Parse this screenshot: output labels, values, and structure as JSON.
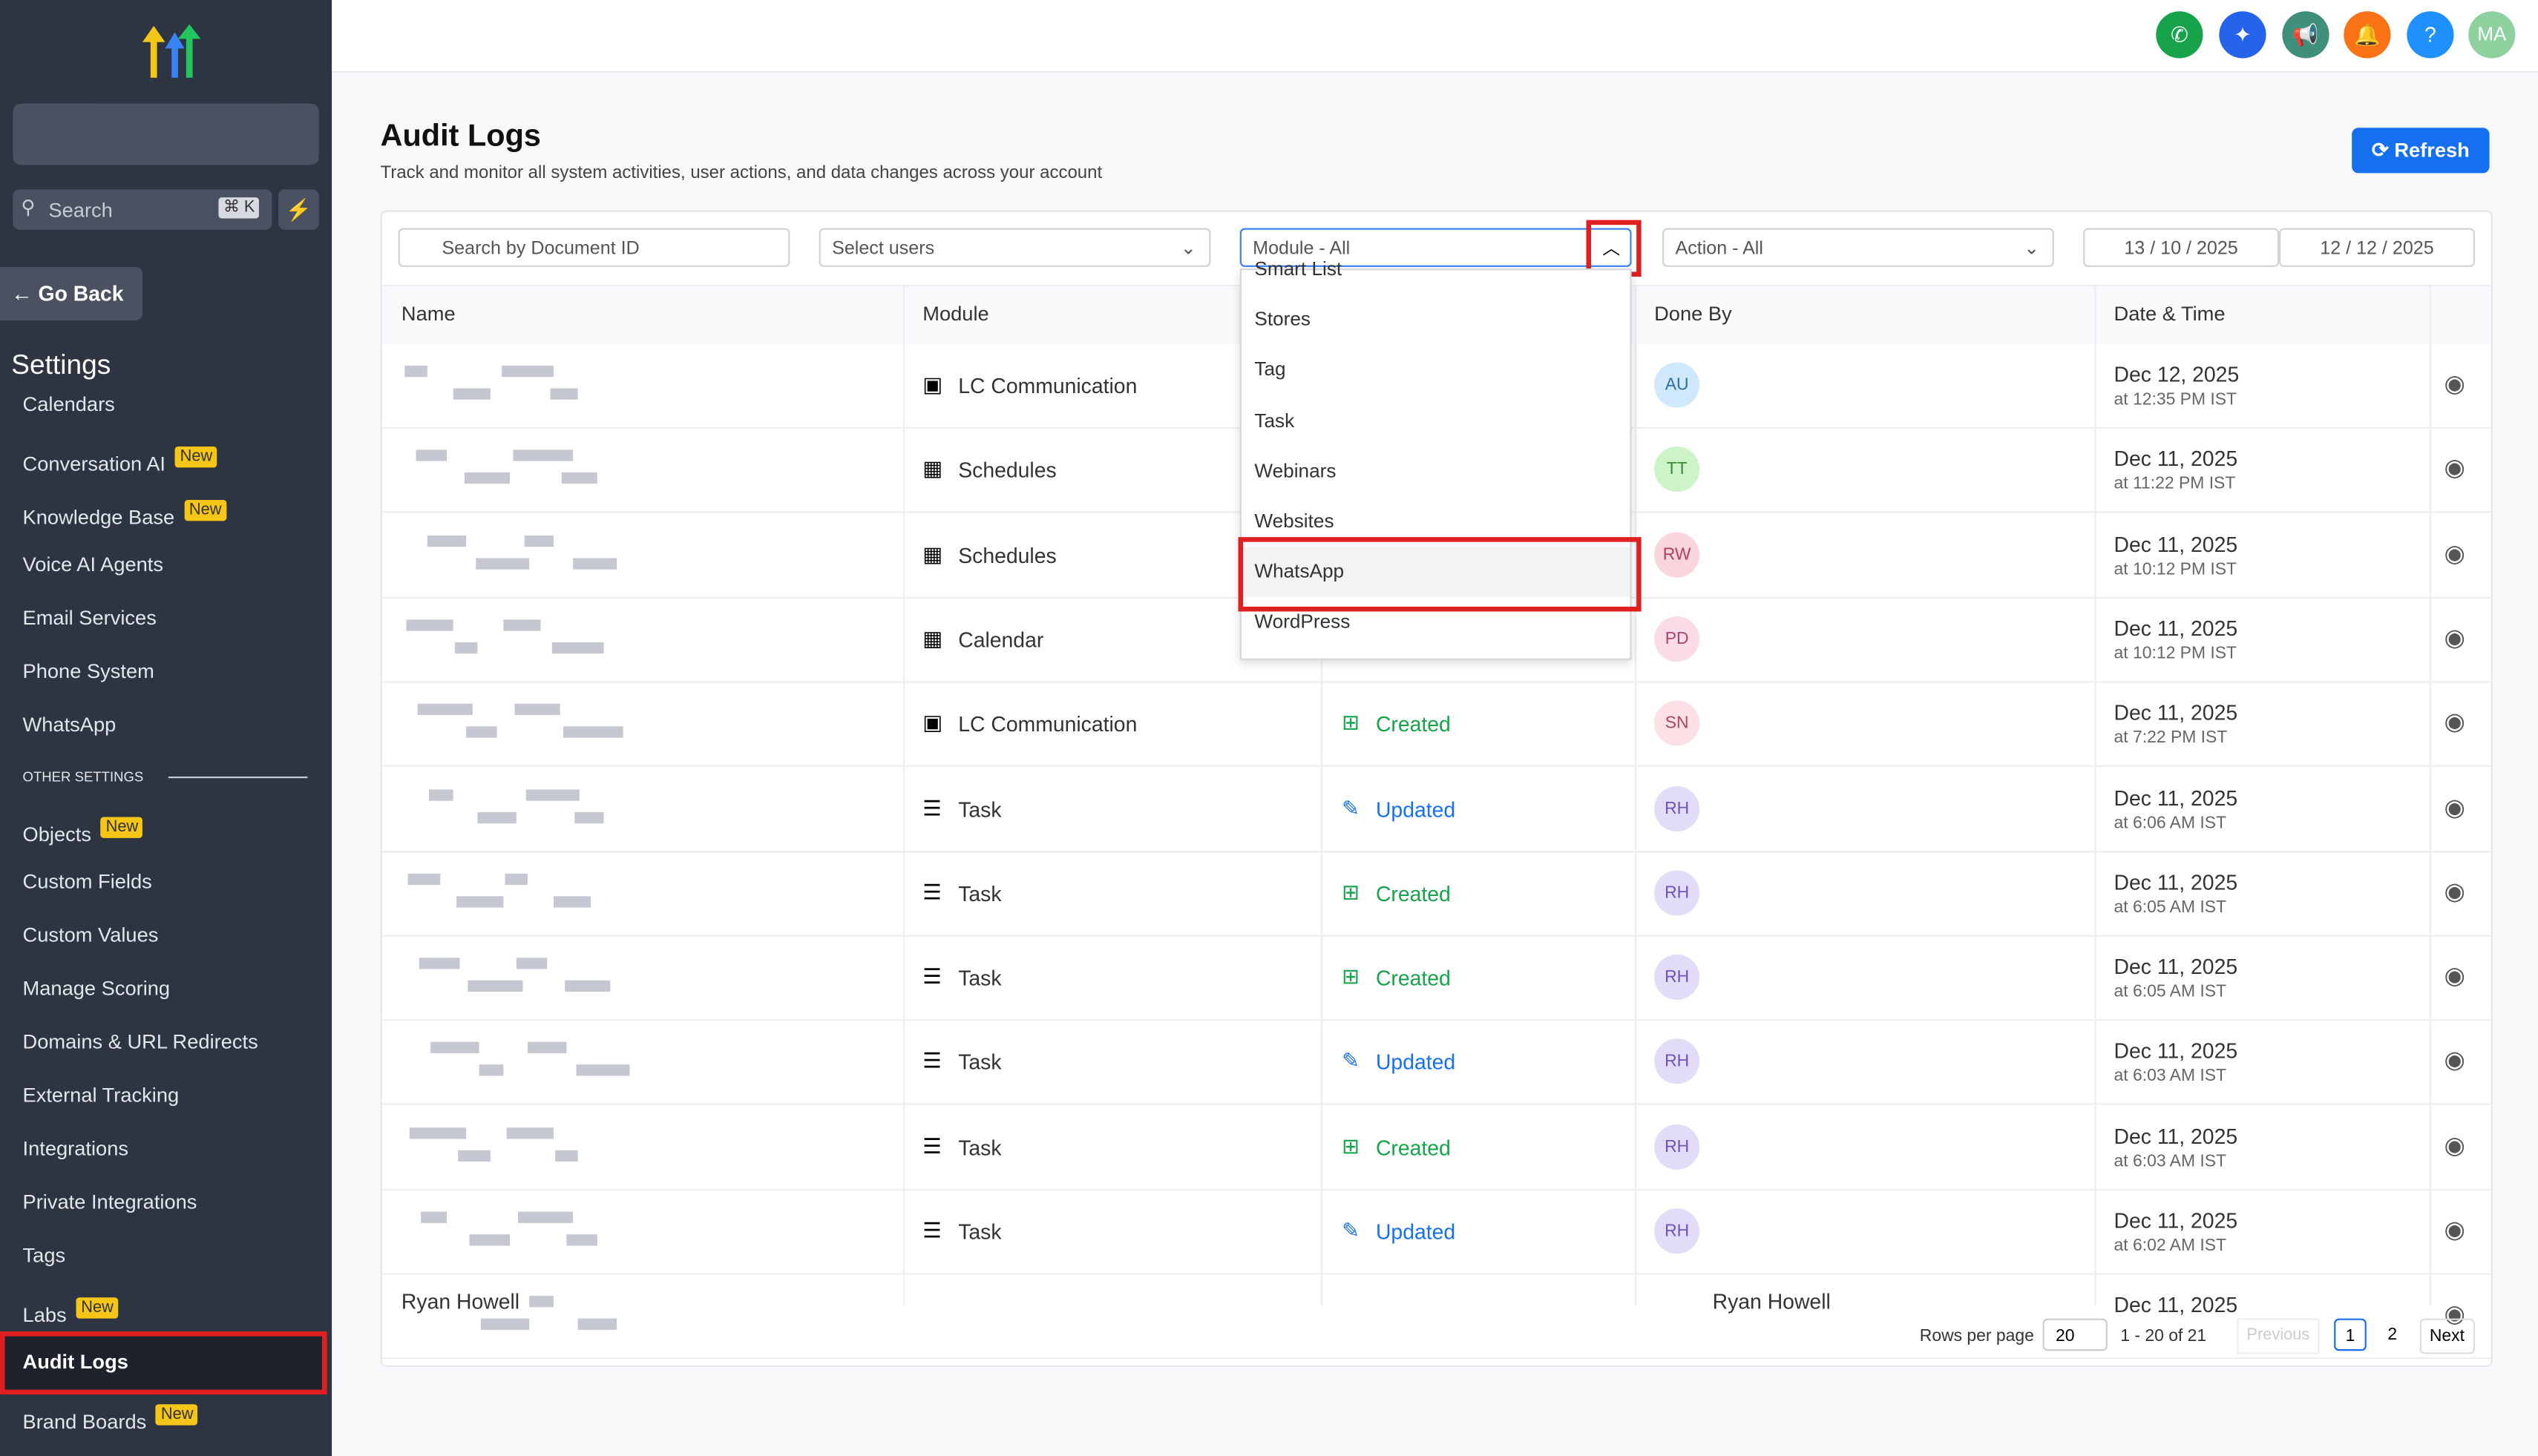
{
  "sidebar": {
    "search": "Search",
    "shortcut": "⌘ K",
    "go_back": "Go Back",
    "title": "Settings",
    "items": [
      {
        "label": "Calendars"
      },
      {
        "label": "Conversation AI",
        "badge": "New"
      },
      {
        "label": "Knowledge Base",
        "badge": "New"
      },
      {
        "label": "Voice AI Agents"
      },
      {
        "label": "Email Services"
      },
      {
        "label": "Phone System"
      },
      {
        "label": "WhatsApp"
      }
    ],
    "section": "OTHER SETTINGS",
    "other_items": [
      {
        "label": "Objects",
        "badge": "New"
      },
      {
        "label": "Custom Fields"
      },
      {
        "label": "Custom Values"
      },
      {
        "label": "Manage Scoring"
      },
      {
        "label": "Domains & URL Redirects"
      },
      {
        "label": "External Tracking"
      },
      {
        "label": "Integrations"
      },
      {
        "label": "Private Integrations"
      },
      {
        "label": "Tags"
      },
      {
        "label": "Labs",
        "badge": "New"
      },
      {
        "label": "Audit Logs"
      },
      {
        "label": "Brand Boards",
        "badge": "New"
      }
    ]
  },
  "header": {
    "avatar": "MA"
  },
  "page": {
    "title": "Audit Logs",
    "subtitle": "Track and monitor all system activities, user actions, and data changes across your account",
    "refresh": "Refresh"
  },
  "filters": {
    "search": "Search by Document ID",
    "users": "Select users",
    "module": "Module - All",
    "action": "Action - All",
    "date_from": "13 / 10 / 2025",
    "date_to": "12 / 12 / 2025"
  },
  "table": {
    "columns": [
      "Name",
      "Module",
      "Done By",
      "Date & Time"
    ],
    "rows": [
      {
        "module": "LC Communication",
        "done_by": "AU",
        "date": "Dec 12, 2025",
        "time": "at 12:35 PM IST"
      },
      {
        "module": "Schedules",
        "done_by": "TT",
        "date": "Dec 11, 2025",
        "time": "at 11:22 PM IST"
      },
      {
        "module": "Schedules",
        "done_by": "RW",
        "date": "Dec 11, 2025",
        "time": "at 10:12 PM IST"
      },
      {
        "module": "Calendar",
        "done_by": "PD",
        "date": "Dec 11, 2025",
        "time": "at 10:12 PM IST"
      },
      {
        "module": "LC Communication",
        "action": "Created",
        "done_by": "SN",
        "date": "Dec 11, 2025",
        "time": "at 7:22 PM IST"
      },
      {
        "module": "Task",
        "action": "Updated",
        "done_by": "RH",
        "date": "Dec 11, 2025",
        "time": "at 6:06 AM IST"
      },
      {
        "module": "Task",
        "action": "Created",
        "done_by": "RH",
        "date": "Dec 11, 2025",
        "time": "at 6:05 AM IST"
      },
      {
        "module": "Task",
        "action": "Created",
        "done_by": "RH",
        "date": "Dec 11, 2025",
        "time": "at 6:05 AM IST"
      },
      {
        "module": "Task",
        "action": "Updated",
        "done_by": "RH",
        "date": "Dec 11, 2025",
        "time": "at 6:03 AM IST"
      },
      {
        "module": "Task",
        "action": "Created",
        "done_by": "RH",
        "date": "Dec 11, 2025",
        "time": "at 6:03 AM IST"
      },
      {
        "module": "Task",
        "action": "Updated",
        "done_by": "RH",
        "date": "Dec 11, 2025",
        "time": "at 6:02 AM IST"
      },
      {
        "name": "Ryan Howell",
        "done_by": "Ryan Howell",
        "date": "Dec 11, 2025"
      }
    ]
  },
  "dropdown": {
    "options": [
      "Smart List",
      "Stores",
      "Tag",
      "Task",
      "Webinars",
      "Websites",
      "WhatsApp",
      "WordPress"
    ]
  },
  "pagination": {
    "rows_per_page": "Rows per page",
    "page_size": "20",
    "range": "1 - 20 of 21",
    "previous": "Previous",
    "pages": [
      "1",
      "2"
    ],
    "next": "Next"
  }
}
